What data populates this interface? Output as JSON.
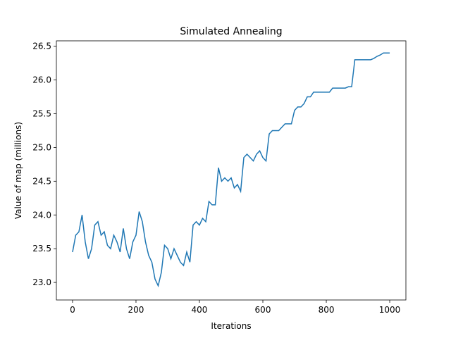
{
  "chart_data": {
    "type": "line",
    "title": "Simulated Annealing",
    "x_label": "Iterations",
    "y_label": "Value of map (millions)",
    "x": [
      0,
      10,
      20,
      30,
      40,
      50,
      60,
      70,
      80,
      90,
      100,
      110,
      120,
      130,
      140,
      150,
      160,
      170,
      180,
      190,
      200,
      210,
      220,
      230,
      240,
      250,
      260,
      270,
      280,
      290,
      300,
      310,
      320,
      330,
      340,
      350,
      360,
      370,
      380,
      390,
      400,
      410,
      420,
      430,
      440,
      450,
      460,
      470,
      480,
      490,
      500,
      510,
      520,
      530,
      540,
      550,
      560,
      570,
      580,
      590,
      600,
      610,
      620,
      630,
      640,
      650,
      660,
      670,
      680,
      690,
      700,
      710,
      720,
      730,
      740,
      750,
      760,
      770,
      780,
      790,
      800,
      810,
      820,
      830,
      840,
      850,
      860,
      870,
      880,
      890,
      900,
      910,
      920,
      930,
      940,
      950,
      960,
      970,
      980,
      990,
      1000
    ],
    "series": [
      {
        "color": "#1f77b4",
        "values": [
          23.45,
          23.7,
          23.75,
          24.0,
          23.6,
          23.35,
          23.5,
          23.85,
          23.9,
          23.7,
          23.75,
          23.55,
          23.5,
          23.7,
          23.6,
          23.45,
          23.8,
          23.5,
          23.35,
          23.6,
          23.7,
          24.05,
          23.9,
          23.6,
          23.4,
          23.3,
          23.05,
          22.95,
          23.15,
          23.55,
          23.5,
          23.35,
          23.5,
          23.4,
          23.3,
          23.25,
          23.45,
          23.3,
          23.85,
          23.9,
          23.85,
          23.95,
          23.9,
          24.2,
          24.15,
          24.15,
          24.7,
          24.5,
          24.55,
          24.5,
          24.55,
          24.4,
          24.45,
          24.35,
          24.85,
          24.9,
          24.85,
          24.8,
          24.9,
          24.95,
          24.85,
          24.8,
          25.2,
          25.25,
          25.25,
          25.25,
          25.3,
          25.35,
          25.35,
          25.35,
          25.55,
          25.6,
          25.6,
          25.65,
          25.75,
          25.75,
          25.82,
          25.82,
          25.82,
          25.82,
          25.82,
          25.82,
          25.88,
          25.88,
          25.88,
          25.88,
          25.88,
          25.9,
          25.9,
          26.3,
          26.3,
          26.3,
          26.3,
          26.3,
          26.3,
          26.32,
          26.35,
          26.37,
          26.4,
          26.4,
          26.4
        ]
      }
    ],
    "xlim": [
      -51,
      1051
    ],
    "ylim": [
      22.74,
      26.58
    ],
    "xticks": [
      0,
      200,
      400,
      600,
      800,
      1000
    ],
    "yticks": [
      {
        "value": 23,
        "label": "23.0"
      },
      23.5,
      {
        "value": 24,
        "label": "24.0"
      },
      24.5,
      {
        "value": 25,
        "label": "25.0"
      },
      25.5,
      {
        "value": 26,
        "label": "26.0"
      },
      26.5
    ]
  }
}
